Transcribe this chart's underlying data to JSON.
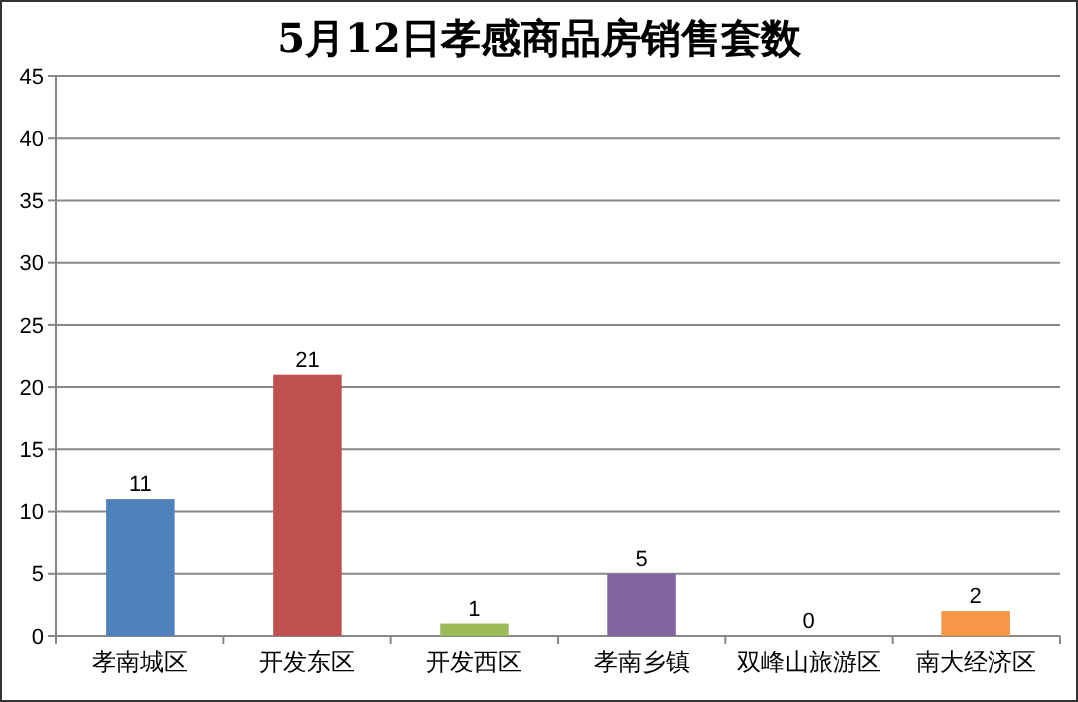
{
  "chart_data": {
    "type": "bar",
    "title": "5月12日孝感商品房销售套数",
    "categories": [
      "孝南城区",
      "开发东区",
      "开发西区",
      "孝南乡镇",
      "双峰山旅游区",
      "南大经济区"
    ],
    "values": [
      11,
      21,
      1,
      5,
      0,
      2
    ],
    "colors": [
      "#4f81bd",
      "#c0504d",
      "#9bbb59",
      "#8064a2",
      "#4bacc6",
      "#f79646"
    ],
    "ylim": [
      0,
      45
    ],
    "yticks": [
      0,
      5,
      10,
      15,
      20,
      25,
      30,
      35,
      40,
      45
    ],
    "grid": "y",
    "data_labels": true
  }
}
